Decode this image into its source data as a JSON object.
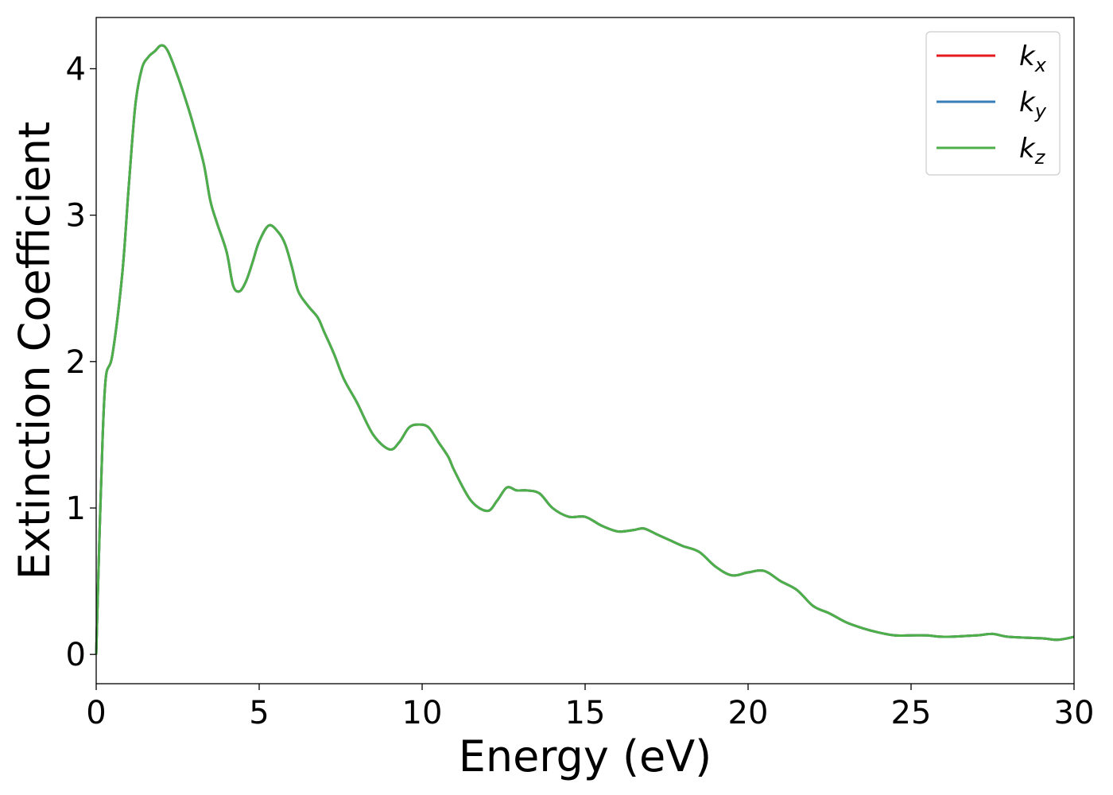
{
  "chart_data": {
    "type": "line",
    "xlabel": "Energy (eV)",
    "ylabel": "Extinction Coefficient",
    "xlim": [
      0,
      30
    ],
    "ylim": [
      -0.2,
      4.35
    ],
    "xticks": [
      0,
      5,
      10,
      15,
      20,
      25,
      30
    ],
    "yticks": [
      0,
      1,
      2,
      3,
      4
    ],
    "grid": false,
    "legend_position": "top-right",
    "series": [
      {
        "name": "k",
        "subscript": "x",
        "color": "#e41a1c",
        "x": [
          0,
          0.1,
          0.2,
          0.3,
          0.5,
          0.8,
          1.0,
          1.2,
          1.4,
          1.6,
          1.8,
          2.0,
          2.2,
          2.5,
          2.8,
          3.0,
          3.3,
          3.5,
          3.7,
          4.0,
          4.2,
          4.4,
          4.6,
          4.8,
          5.0,
          5.3,
          5.6,
          5.8,
          6.0,
          6.2,
          6.5,
          6.8,
          7.0,
          7.3,
          7.6,
          8.0,
          8.5,
          9.0,
          9.3,
          9.6,
          9.9,
          10.2,
          10.5,
          10.8,
          11.0,
          11.5,
          12.0,
          12.3,
          12.6,
          12.9,
          13.2,
          13.6,
          14.0,
          14.5,
          15.0,
          15.5,
          16.0,
          16.5,
          16.8,
          17.2,
          17.6,
          18.0,
          18.5,
          19.0,
          19.5,
          20.0,
          20.5,
          21.0,
          21.5,
          22.0,
          22.5,
          23.0,
          23.5,
          24.0,
          24.5,
          25.0,
          25.5,
          26.0,
          27.0,
          27.5,
          28.0,
          29.0,
          29.5,
          30.0
        ],
        "y": [
          0.0,
          0.8,
          1.5,
          1.9,
          2.05,
          2.6,
          3.2,
          3.75,
          4.0,
          4.08,
          4.12,
          4.16,
          4.12,
          3.95,
          3.75,
          3.6,
          3.35,
          3.1,
          2.95,
          2.75,
          2.52,
          2.48,
          2.55,
          2.68,
          2.82,
          2.93,
          2.88,
          2.8,
          2.65,
          2.48,
          2.38,
          2.3,
          2.2,
          2.05,
          1.88,
          1.72,
          1.5,
          1.4,
          1.45,
          1.55,
          1.57,
          1.55,
          1.45,
          1.35,
          1.25,
          1.05,
          0.98,
          1.05,
          1.14,
          1.12,
          1.12,
          1.1,
          1.0,
          0.94,
          0.94,
          0.88,
          0.84,
          0.85,
          0.86,
          0.82,
          0.78,
          0.74,
          0.7,
          0.6,
          0.54,
          0.56,
          0.57,
          0.5,
          0.44,
          0.33,
          0.28,
          0.22,
          0.18,
          0.15,
          0.13,
          0.13,
          0.13,
          0.12,
          0.13,
          0.14,
          0.12,
          0.11,
          0.1,
          0.12
        ]
      },
      {
        "name": "k",
        "subscript": "y",
        "color": "#377eb8",
        "x": [
          0,
          0.1,
          0.2,
          0.3,
          0.5,
          0.8,
          1.0,
          1.2,
          1.4,
          1.6,
          1.8,
          2.0,
          2.2,
          2.5,
          2.8,
          3.0,
          3.3,
          3.5,
          3.7,
          4.0,
          4.2,
          4.4,
          4.6,
          4.8,
          5.0,
          5.3,
          5.6,
          5.8,
          6.0,
          6.2,
          6.5,
          6.8,
          7.0,
          7.3,
          7.6,
          8.0,
          8.5,
          9.0,
          9.3,
          9.6,
          9.9,
          10.2,
          10.5,
          10.8,
          11.0,
          11.5,
          12.0,
          12.3,
          12.6,
          12.9,
          13.2,
          13.6,
          14.0,
          14.5,
          15.0,
          15.5,
          16.0,
          16.5,
          16.8,
          17.2,
          17.6,
          18.0,
          18.5,
          19.0,
          19.5,
          20.0,
          20.5,
          21.0,
          21.5,
          22.0,
          22.5,
          23.0,
          23.5,
          24.0,
          24.5,
          25.0,
          25.5,
          26.0,
          27.0,
          27.5,
          28.0,
          29.0,
          29.5,
          30.0
        ],
        "y": [
          0.0,
          0.8,
          1.5,
          1.9,
          2.05,
          2.6,
          3.2,
          3.75,
          4.0,
          4.08,
          4.12,
          4.16,
          4.12,
          3.95,
          3.75,
          3.6,
          3.35,
          3.1,
          2.95,
          2.75,
          2.52,
          2.48,
          2.55,
          2.68,
          2.82,
          2.93,
          2.88,
          2.8,
          2.65,
          2.48,
          2.38,
          2.3,
          2.2,
          2.05,
          1.88,
          1.72,
          1.5,
          1.4,
          1.45,
          1.55,
          1.57,
          1.55,
          1.45,
          1.35,
          1.25,
          1.05,
          0.98,
          1.05,
          1.14,
          1.12,
          1.12,
          1.1,
          1.0,
          0.94,
          0.94,
          0.88,
          0.84,
          0.85,
          0.86,
          0.82,
          0.78,
          0.74,
          0.7,
          0.6,
          0.54,
          0.56,
          0.57,
          0.5,
          0.44,
          0.33,
          0.28,
          0.22,
          0.18,
          0.15,
          0.13,
          0.13,
          0.13,
          0.12,
          0.13,
          0.14,
          0.12,
          0.11,
          0.1,
          0.12
        ]
      },
      {
        "name": "k",
        "subscript": "z",
        "color": "#4daf4a",
        "x": [
          0,
          0.1,
          0.2,
          0.3,
          0.5,
          0.8,
          1.0,
          1.2,
          1.4,
          1.6,
          1.8,
          2.0,
          2.2,
          2.5,
          2.8,
          3.0,
          3.3,
          3.5,
          3.7,
          4.0,
          4.2,
          4.4,
          4.6,
          4.8,
          5.0,
          5.3,
          5.6,
          5.8,
          6.0,
          6.2,
          6.5,
          6.8,
          7.0,
          7.3,
          7.6,
          8.0,
          8.5,
          9.0,
          9.3,
          9.6,
          9.9,
          10.2,
          10.5,
          10.8,
          11.0,
          11.5,
          12.0,
          12.3,
          12.6,
          12.9,
          13.2,
          13.6,
          14.0,
          14.5,
          15.0,
          15.5,
          16.0,
          16.5,
          16.8,
          17.2,
          17.6,
          18.0,
          18.5,
          19.0,
          19.5,
          20.0,
          20.5,
          21.0,
          21.5,
          22.0,
          22.5,
          23.0,
          23.5,
          24.0,
          24.5,
          25.0,
          25.5,
          26.0,
          27.0,
          27.5,
          28.0,
          29.0,
          29.5,
          30.0
        ],
        "y": [
          0.0,
          0.8,
          1.5,
          1.9,
          2.05,
          2.6,
          3.2,
          3.75,
          4.0,
          4.08,
          4.12,
          4.16,
          4.12,
          3.95,
          3.75,
          3.6,
          3.35,
          3.1,
          2.95,
          2.75,
          2.52,
          2.48,
          2.55,
          2.68,
          2.82,
          2.93,
          2.88,
          2.8,
          2.65,
          2.48,
          2.38,
          2.3,
          2.2,
          2.05,
          1.88,
          1.72,
          1.5,
          1.4,
          1.45,
          1.55,
          1.57,
          1.55,
          1.45,
          1.35,
          1.25,
          1.05,
          0.98,
          1.05,
          1.14,
          1.12,
          1.12,
          1.1,
          1.0,
          0.94,
          0.94,
          0.88,
          0.84,
          0.85,
          0.86,
          0.82,
          0.78,
          0.74,
          0.7,
          0.6,
          0.54,
          0.56,
          0.57,
          0.5,
          0.44,
          0.33,
          0.28,
          0.22,
          0.18,
          0.15,
          0.13,
          0.13,
          0.13,
          0.12,
          0.13,
          0.14,
          0.12,
          0.11,
          0.1,
          0.12
        ]
      }
    ]
  }
}
